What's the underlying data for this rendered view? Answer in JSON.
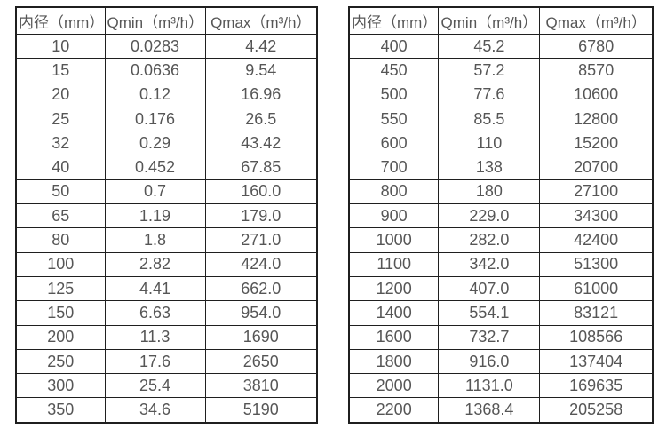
{
  "tables": [
    {
      "name": "small-diameters",
      "headers": [
        "内径（mm）",
        "Qmin（m³/h）",
        "Qmax（m³/h）"
      ],
      "rows": [
        [
          "10",
          "0.0283",
          "4.42"
        ],
        [
          "15",
          "0.0636",
          "9.54"
        ],
        [
          "20",
          "0.12",
          "16.96"
        ],
        [
          "25",
          "0.176",
          "26.5"
        ],
        [
          "32",
          "0.29",
          "43.42"
        ],
        [
          "40",
          "0.452",
          "67.85"
        ],
        [
          "50",
          "0.7",
          "160.0"
        ],
        [
          "65",
          "1.19",
          "179.0"
        ],
        [
          "80",
          "1.8",
          "271.0"
        ],
        [
          "100",
          "2.82",
          "424.0"
        ],
        [
          "125",
          "4.41",
          "662.0"
        ],
        [
          "150",
          "6.63",
          "954.0"
        ],
        [
          "200",
          "11.3",
          "1690"
        ],
        [
          "250",
          "17.6",
          "2650"
        ],
        [
          "300",
          "25.4",
          "3810"
        ],
        [
          "350",
          "34.6",
          "5190"
        ]
      ]
    },
    {
      "name": "large-diameters",
      "headers": [
        "内径（mm）",
        "Qmin（m³/h）",
        "Qmax（m³/h）"
      ],
      "rows": [
        [
          "400",
          "45.2",
          "6780"
        ],
        [
          "450",
          "57.2",
          "8570"
        ],
        [
          "500",
          "77.6",
          "10600"
        ],
        [
          "550",
          "85.5",
          "12800"
        ],
        [
          "600",
          "110",
          "15200"
        ],
        [
          "700",
          "138",
          "20700"
        ],
        [
          "800",
          "180",
          "27100"
        ],
        [
          "900",
          "229.0",
          "34300"
        ],
        [
          "1000",
          "282.0",
          "42400"
        ],
        [
          "1100",
          "342.0",
          "51300"
        ],
        [
          "1200",
          "407.0",
          "61000"
        ],
        [
          "1400",
          "554.1",
          "83121"
        ],
        [
          "1600",
          "732.7",
          "108566"
        ],
        [
          "1800",
          "916.0",
          "137404"
        ],
        [
          "2000",
          "1131.0",
          "169635"
        ],
        [
          "2200",
          "1368.4",
          "205258"
        ]
      ]
    }
  ],
  "colors": {
    "border": "#1f1f1f",
    "text": "#565656",
    "background": "#ffffff"
  }
}
